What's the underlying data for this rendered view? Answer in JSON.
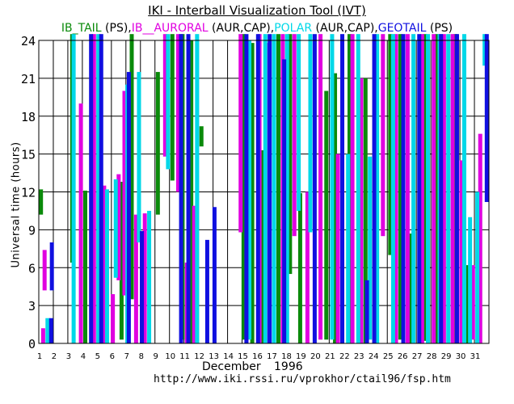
{
  "chart_data": {
    "type": "bar",
    "title": "IKI - Interball Visualization Tool (IVT)",
    "legend": [
      {
        "text": "IB_TAIL",
        "color": "#0a8a0a"
      },
      {
        "text": " (PS),",
        "color": "#000000"
      },
      {
        "text": "IB__AURORAL",
        "color": "#e000e0"
      },
      {
        "text": " (AUR,CAP),",
        "color": "#000000"
      },
      {
        "text": "POLAR",
        "color": "#00d8e8"
      },
      {
        "text": " (AUR,CAP),",
        "color": "#000000"
      },
      {
        "text": "GEOTAIL",
        "color": "#1010e0"
      },
      {
        "text": " (PS)",
        "color": "#000000"
      }
    ],
    "xlabel": "December",
    "xyear": "1996",
    "ylabel": "Universal time (hours)",
    "url": "http://www.iki.rssi.ru/vprokhor/ctail96/fsp.htm",
    "ylim": [
      0,
      24
    ],
    "yticks": [
      0,
      3,
      6,
      9,
      12,
      15,
      18,
      21,
      24
    ],
    "xlim": [
      1,
      32
    ],
    "xticks": [
      "1",
      "2",
      "3",
      "4",
      "5",
      "6",
      "7",
      "8",
      "9",
      "10",
      "11",
      "12",
      "13",
      "14",
      "15",
      "16",
      "17",
      "18",
      "19",
      "20",
      "21",
      "22",
      "23",
      "24",
      "25",
      "26",
      "27",
      "28",
      "29",
      "30",
      "31"
    ],
    "grid": true,
    "series": [
      {
        "name": "IB_TAIL",
        "color": "#0a8a0a",
        "intervals": [
          [
            1.15,
            10.2,
            12.2
          ],
          [
            3.3,
            6.4,
            24.5
          ],
          [
            4.2,
            0.0,
            12.1
          ],
          [
            6.7,
            0.3,
            12.8
          ],
          [
            7.4,
            3.5,
            24.5
          ],
          [
            9.2,
            10.2,
            21.5
          ],
          [
            10.2,
            12.9,
            24.5
          ],
          [
            10.9,
            0.3,
            24.5
          ],
          [
            11.5,
            0.0,
            24.0
          ],
          [
            12.2,
            15.6,
            17.2
          ],
          [
            15.1,
            0.3,
            24.5
          ],
          [
            15.7,
            0.0,
            23.8
          ],
          [
            16.4,
            0.0,
            15.3
          ],
          [
            17.5,
            0.0,
            24.5
          ],
          [
            18.3,
            5.5,
            24.5
          ],
          [
            19.0,
            0.0,
            11.9
          ],
          [
            20.8,
            0.3,
            20.0
          ],
          [
            21.4,
            0.0,
            21.4
          ],
          [
            22.4,
            0.0,
            24.5
          ],
          [
            23.5,
            0.0,
            21.0
          ],
          [
            25.2,
            7.0,
            24.5
          ],
          [
            25.9,
            0.3,
            24.5
          ],
          [
            26.6,
            0.0,
            8.7
          ],
          [
            27.6,
            0.2,
            24.5
          ],
          [
            28.4,
            0.0,
            24.5
          ],
          [
            29.7,
            0.0,
            24.5
          ],
          [
            30.5,
            0.0,
            6.2
          ]
        ]
      },
      {
        "name": "IB__AURORAL",
        "color": "#e000e0",
        "intervals": [
          [
            1.3,
            0.0,
            1.2
          ],
          [
            1.4,
            4.2,
            7.4
          ],
          [
            3.9,
            0.0,
            19.0
          ],
          [
            4.8,
            0.0,
            24.5
          ],
          [
            5.5,
            0.0,
            12.5
          ],
          [
            6.1,
            0.0,
            3.9
          ],
          [
            6.5,
            5.0,
            13.4
          ],
          [
            6.9,
            3.8,
            20.0
          ],
          [
            7.7,
            0.0,
            10.2
          ],
          [
            8.3,
            0.0,
            10.3
          ],
          [
            9.7,
            14.8,
            24.5
          ],
          [
            10.6,
            12.0,
            24.5
          ],
          [
            11.2,
            0.0,
            6.4
          ],
          [
            11.7,
            0.0,
            10.9
          ],
          [
            14.9,
            8.8,
            24.5
          ],
          [
            15.3,
            0.0,
            22.4
          ],
          [
            16.2,
            0.0,
            24.5
          ],
          [
            16.8,
            0.0,
            23.8
          ],
          [
            17.8,
            0.0,
            24.5
          ],
          [
            18.6,
            8.5,
            24.5
          ],
          [
            19.5,
            0.0,
            12.0
          ],
          [
            20.4,
            0.3,
            24.5
          ],
          [
            21.6,
            0.0,
            15.0
          ],
          [
            22.6,
            0.0,
            24.5
          ],
          [
            23.2,
            0.0,
            21.0
          ],
          [
            24.7,
            8.5,
            24.5
          ],
          [
            25.6,
            0.0,
            24.5
          ],
          [
            26.4,
            0.0,
            24.5
          ],
          [
            27.4,
            0.0,
            24.5
          ],
          [
            28.2,
            0.0,
            24.5
          ],
          [
            28.9,
            0.0,
            24.5
          ],
          [
            29.5,
            0.0,
            24.5
          ],
          [
            30.1,
            0.0,
            14.5
          ],
          [
            30.9,
            0.3,
            6.2
          ],
          [
            31.4,
            0.0,
            16.6
          ]
        ]
      },
      {
        "name": "POLAR",
        "color": "#00d8e8",
        "intervals": [
          [
            1.6,
            0.0,
            2.0
          ],
          [
            3.4,
            0.0,
            24.5
          ],
          [
            5.1,
            0.0,
            24.5
          ],
          [
            5.7,
            0.0,
            12.2
          ],
          [
            6.3,
            5.2,
            13.0
          ],
          [
            7.1,
            0.0,
            20.5
          ],
          [
            7.9,
            8.0,
            21.5
          ],
          [
            8.6,
            0.0,
            10.5
          ],
          [
            9.9,
            13.8,
            24.5
          ],
          [
            11.9,
            0.0,
            24.5
          ],
          [
            15.5,
            0.3,
            24.0
          ],
          [
            16.6,
            0.0,
            24.5
          ],
          [
            17.2,
            0.0,
            24.5
          ],
          [
            18.1,
            0.0,
            24.5
          ],
          [
            18.9,
            10.5,
            24.5
          ],
          [
            19.7,
            8.8,
            24.5
          ],
          [
            21.2,
            0.3,
            24.5
          ],
          [
            22.3,
            0.0,
            15.0
          ],
          [
            23.0,
            0.0,
            24.5
          ],
          [
            23.8,
            0.3,
            14.8
          ],
          [
            24.3,
            0.0,
            24.5
          ],
          [
            25.4,
            0.0,
            24.5
          ],
          [
            26.8,
            0.0,
            24.5
          ],
          [
            27.8,
            0.0,
            24.5
          ],
          [
            28.6,
            0.0,
            24.5
          ],
          [
            29.2,
            0.0,
            24.5
          ],
          [
            30.3,
            0.0,
            24.5
          ],
          [
            30.7,
            0.0,
            10.0
          ],
          [
            31.2,
            0.0,
            12.0
          ],
          [
            31.7,
            22.0,
            24.5
          ]
        ]
      },
      {
        "name": "GEOTAIL",
        "color": "#1010e0",
        "intervals": [
          [
            1.85,
            0.0,
            2.0
          ],
          [
            1.9,
            4.2,
            8.0
          ],
          [
            4.6,
            0.0,
            24.5
          ],
          [
            5.3,
            0.0,
            24.5
          ],
          [
            7.2,
            0.0,
            21.5
          ],
          [
            8.1,
            0.0,
            8.9
          ],
          [
            10.8,
            0.0,
            24.5
          ],
          [
            11.3,
            0.0,
            24.5
          ],
          [
            12.6,
            0.0,
            8.2
          ],
          [
            13.1,
            0.0,
            10.8
          ],
          [
            15.3,
            0.0,
            24.5
          ],
          [
            16.1,
            0.0,
            24.5
          ],
          [
            16.9,
            0.0,
            24.5
          ],
          [
            17.9,
            0.0,
            22.5
          ],
          [
            20.0,
            0.0,
            24.5
          ],
          [
            21.9,
            0.0,
            24.5
          ],
          [
            23.6,
            0.0,
            5.0
          ],
          [
            24.1,
            0.0,
            24.5
          ],
          [
            26.1,
            0.0,
            24.5
          ],
          [
            27.2,
            0.0,
            24.5
          ],
          [
            28.7,
            0.0,
            24.5
          ],
          [
            29.8,
            0.0,
            24.5
          ],
          [
            31.85,
            11.2,
            24.5
          ]
        ]
      }
    ]
  }
}
